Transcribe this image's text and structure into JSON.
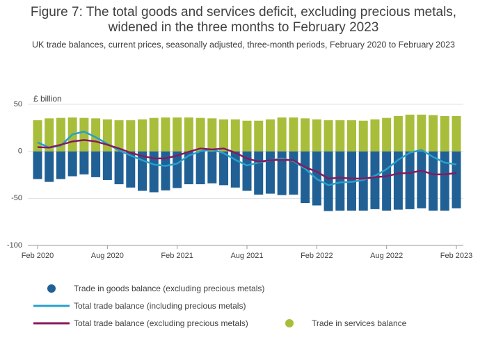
{
  "chart_data": {
    "type": "bar",
    "title": [
      "Figure 7: The total goods and services deficit, excluding precious metals,",
      "widened in the three months to February 2023"
    ],
    "subtitle": "UK trade balances, current prices, seasonally adjusted, three-month periods, February 2020 to February 2023",
    "ylabel": "£ billion",
    "categories": [
      "Feb 2020",
      null,
      null,
      null,
      null,
      null,
      "Aug 2020",
      null,
      null,
      null,
      null,
      null,
      "Feb 2021",
      null,
      null,
      null,
      null,
      null,
      "Aug 2021",
      null,
      null,
      null,
      null,
      null,
      "Feb 2022",
      null,
      null,
      null,
      null,
      null,
      "Aug 2022",
      null,
      null,
      null,
      null,
      null,
      "Feb 2023"
    ],
    "ylim": [
      -100,
      50
    ],
    "yticks": [
      50,
      0,
      -50,
      -100
    ],
    "grid": true,
    "series": [
      {
        "name": "Trade in goods balance (excluding precious metals)",
        "type": "bar",
        "color": "#206095",
        "values": [
          -29.5,
          -32.5,
          -29.5,
          -26.5,
          -24.5,
          -27.5,
          -30.5,
          -35,
          -38.5,
          -42,
          -43.5,
          -41.5,
          -39,
          -35,
          -35,
          -34,
          -36,
          -38.5,
          -42,
          -46,
          -45,
          -46.5,
          -46,
          -55,
          -57.5,
          -63.5,
          -63,
          -63,
          -63,
          -61.5,
          -63,
          -62,
          -61.5,
          -60.5,
          -63,
          -63,
          -60.5
        ]
      },
      {
        "name": "Trade in services balance",
        "type": "bar",
        "color": "#a8bd3a",
        "values": [
          33,
          35,
          35.5,
          36,
          35.5,
          35,
          34,
          33,
          33,
          34,
          35.5,
          36,
          36,
          36,
          35.5,
          35,
          34,
          34,
          32.5,
          32.5,
          34,
          36,
          36,
          35,
          34,
          33,
          33,
          33,
          32.5,
          34,
          35.5,
          37.5,
          39,
          39,
          38.5,
          37.5,
          37.5
        ]
      },
      {
        "name": "Total trade balance (including precious metals)",
        "type": "line",
        "color": "#27a0cc",
        "values": [
          9.5,
          4,
          6,
          18,
          21,
          15,
          8,
          1,
          -4.5,
          -9.5,
          -14,
          -15.5,
          -13,
          -4.5,
          0,
          2,
          -2,
          -9,
          -15,
          -12,
          -9.5,
          -7.5,
          -10.5,
          -18.5,
          -29.5,
          -36,
          -33,
          -32.5,
          -30.5,
          -26,
          -19,
          -9,
          -1.5,
          1.5,
          -6,
          -12,
          -14
        ]
      },
      {
        "name": "Total trade balance (excluding precious metals)",
        "type": "line",
        "color": "#871a5b",
        "values": [
          4.5,
          4,
          7,
          10.5,
          12,
          10.5,
          7,
          3,
          -1.5,
          -5,
          -7.5,
          -7.5,
          -4.5,
          -0.5,
          3,
          2,
          3,
          -1.5,
          -7.5,
          -11,
          -9.5,
          -9,
          -9.5,
          -17,
          -21.5,
          -29,
          -28,
          -29,
          -29,
          -27.5,
          -26.5,
          -23.5,
          -23,
          -20.5,
          -24.5,
          -24.5,
          -23
        ]
      }
    ]
  }
}
